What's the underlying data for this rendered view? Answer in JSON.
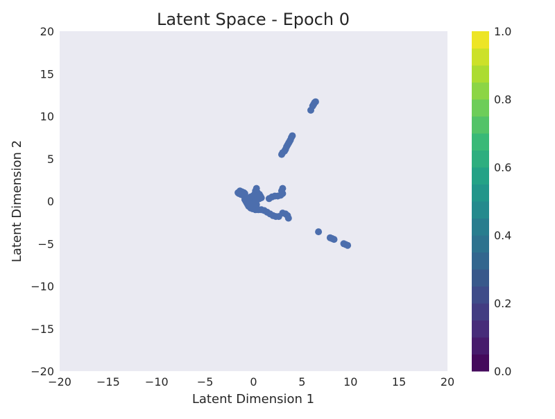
{
  "chart_data": {
    "type": "scatter",
    "title": "Latent Space - Epoch 0",
    "xlabel": "Latent Dimension 1",
    "ylabel": "Latent Dimension 2",
    "xlim": [
      -20,
      20
    ],
    "ylim": [
      -20,
      20
    ],
    "xticks": [
      -20,
      -15,
      -10,
      -5,
      0,
      5,
      10,
      15,
      20
    ],
    "yticks": [
      -20,
      -15,
      -10,
      -5,
      0,
      5,
      10,
      15,
      20
    ],
    "x_tick_labels": [
      "−20",
      "−15",
      "−10",
      "−5",
      "0",
      "5",
      "10",
      "15",
      "20"
    ],
    "y_tick_labels": [
      "−20",
      "−15",
      "−10",
      "−5",
      "0",
      "5",
      "10",
      "15",
      "20"
    ],
    "grid": false,
    "background_color": "#EAEAF2",
    "point_color": "#4C6EAD",
    "colorbar": {
      "colormap": "viridis",
      "range": [
        0.0,
        1.0
      ],
      "levels": 20,
      "ticks": [
        0.0,
        0.2,
        0.4,
        0.6,
        0.8,
        1.0
      ],
      "tick_labels": [
        "0.0",
        "0.2",
        "0.4",
        "0.6",
        "0.8",
        "1.0"
      ]
    },
    "points": [
      [
        6.4,
        11.7
      ],
      [
        6.3,
        11.6
      ],
      [
        6.2,
        11.4
      ],
      [
        6.1,
        11.2
      ],
      [
        5.9,
        10.7
      ],
      [
        4.0,
        7.7
      ],
      [
        3.9,
        7.5
      ],
      [
        3.8,
        7.2
      ],
      [
        3.7,
        7.0
      ],
      [
        3.6,
        6.8
      ],
      [
        3.5,
        6.6
      ],
      [
        3.4,
        6.4
      ],
      [
        3.3,
        6.1
      ],
      [
        3.2,
        5.9
      ],
      [
        3.0,
        5.7
      ],
      [
        2.9,
        5.5
      ],
      [
        -1.6,
        1.0
      ],
      [
        -1.4,
        1.2
      ],
      [
        -1.2,
        1.1
      ],
      [
        -1.0,
        1.0
      ],
      [
        -1.3,
        0.8
      ],
      [
        -1.5,
        0.9
      ],
      [
        -0.9,
        0.9
      ],
      [
        -1.1,
        0.7
      ],
      [
        -0.9,
        0.2
      ],
      [
        -0.8,
        0.0
      ],
      [
        -0.7,
        -0.2
      ],
      [
        -0.6,
        -0.4
      ],
      [
        -0.5,
        -0.6
      ],
      [
        -0.3,
        -0.8
      ],
      [
        -0.1,
        -0.9
      ],
      [
        0.2,
        -1.0
      ],
      [
        0.5,
        -1.0
      ],
      [
        0.8,
        -1.0
      ],
      [
        1.1,
        -1.1
      ],
      [
        1.4,
        -1.3
      ],
      [
        1.7,
        -1.5
      ],
      [
        2.0,
        -1.7
      ],
      [
        2.3,
        -1.8
      ],
      [
        2.6,
        -1.8
      ],
      [
        -0.5,
        0.3
      ],
      [
        -0.3,
        0.5
      ],
      [
        -0.1,
        0.6
      ],
      [
        0.1,
        0.8
      ],
      [
        0.2,
        1.2
      ],
      [
        0.3,
        1.5
      ],
      [
        0.4,
        1.0
      ],
      [
        0.6,
        0.8
      ],
      [
        0.5,
        0.5
      ],
      [
        0.7,
        0.6
      ],
      [
        -0.2,
        0.0
      ],
      [
        0.0,
        -0.2
      ],
      [
        0.2,
        0.0
      ],
      [
        0.4,
        0.2
      ],
      [
        0.6,
        0.3
      ],
      [
        0.3,
        -0.4
      ],
      [
        -0.4,
        -0.3
      ],
      [
        0.8,
        0.4
      ],
      [
        1.6,
        0.3
      ],
      [
        1.9,
        0.5
      ],
      [
        2.2,
        0.6
      ],
      [
        2.5,
        0.6
      ],
      [
        2.8,
        0.7
      ],
      [
        3.0,
        0.9
      ],
      [
        2.9,
        1.2
      ],
      [
        3.0,
        1.5
      ],
      [
        3.0,
        -1.4
      ],
      [
        3.3,
        -1.5
      ],
      [
        3.5,
        -1.7
      ],
      [
        3.6,
        -2.0
      ],
      [
        6.7,
        -3.6
      ],
      [
        7.9,
        -4.3
      ],
      [
        8.1,
        -4.4
      ],
      [
        8.3,
        -4.5
      ],
      [
        9.3,
        -5.0
      ],
      [
        9.5,
        -5.1
      ],
      [
        9.7,
        -5.2
      ]
    ]
  }
}
